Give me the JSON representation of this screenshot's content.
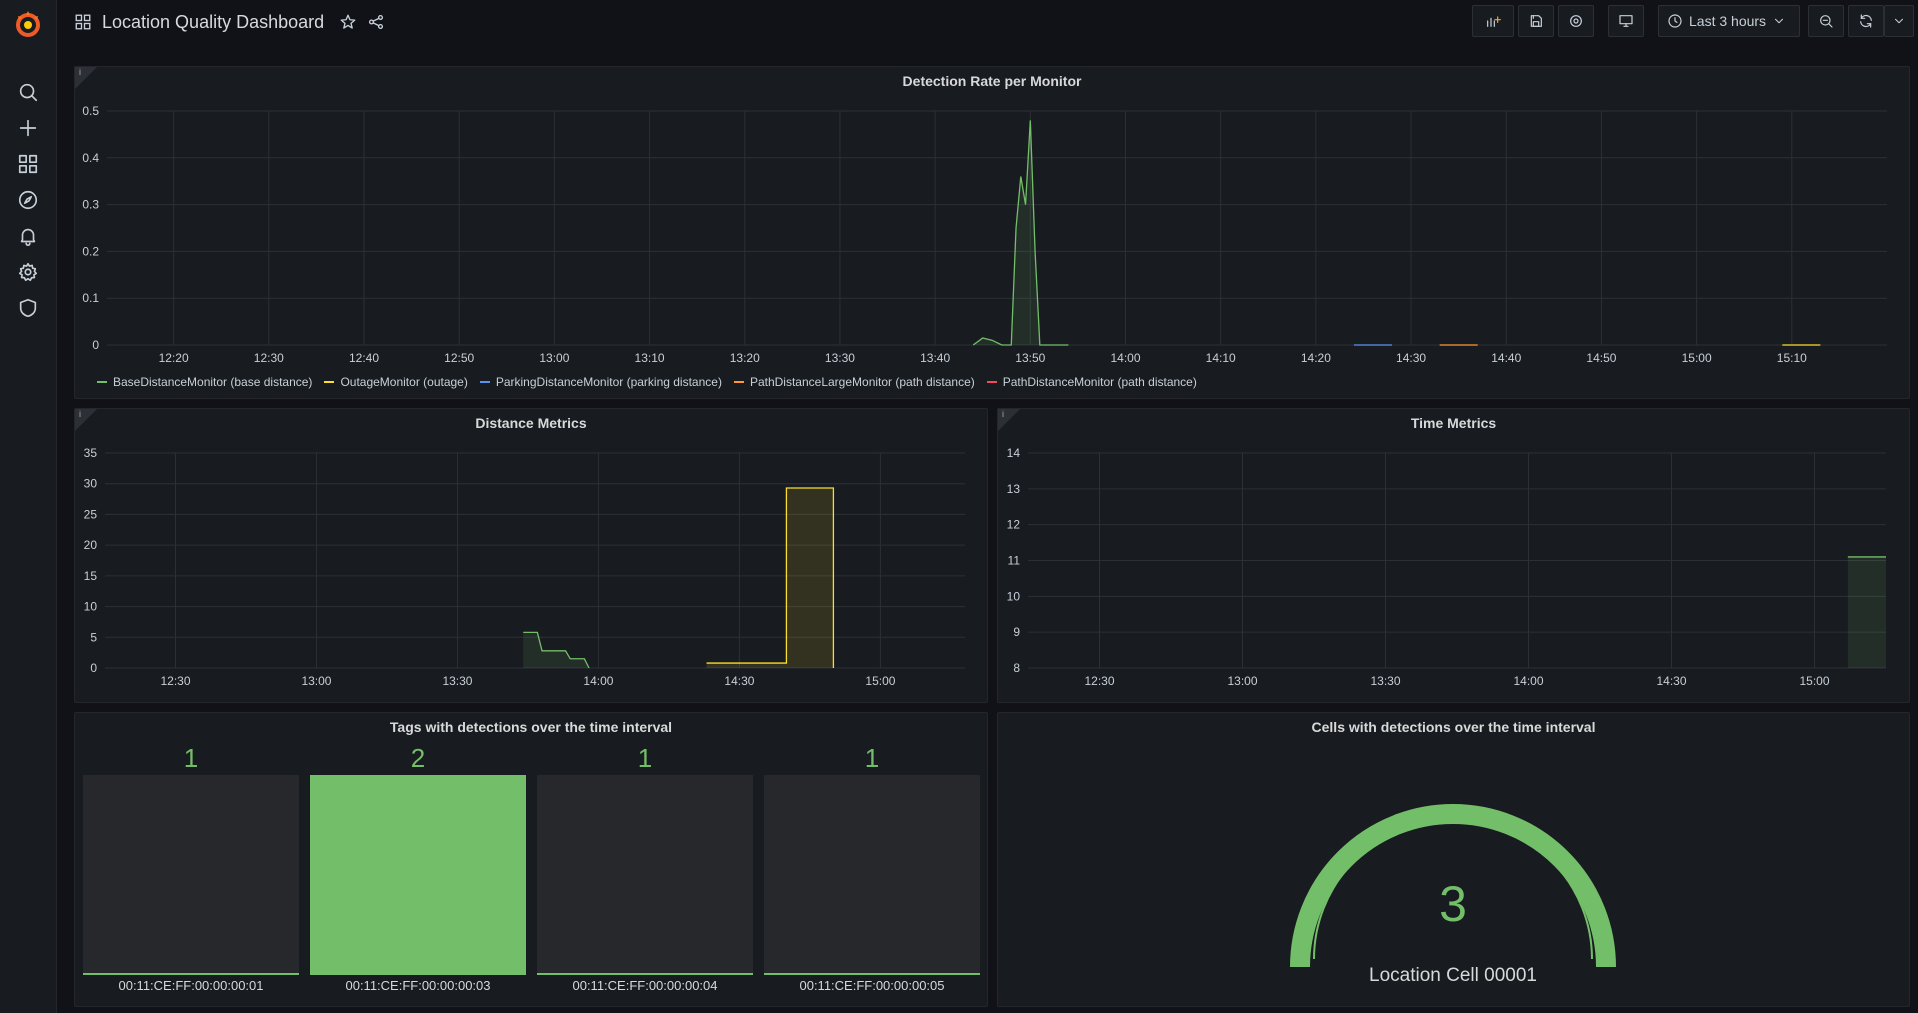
{
  "header": {
    "title": "Location Quality Dashboard",
    "time_range": "Last 3 hours"
  },
  "colors": {
    "green": "#73bf69",
    "yellow": "#fade2a",
    "blue": "#5794f2",
    "orange": "#ff9830",
    "red": "#f2495c",
    "panel_bg": "#181b1f",
    "page_bg": "#111217"
  },
  "sidebar": {
    "icons": [
      "search-icon",
      "plus-icon",
      "dashboards-icon",
      "explore-icon",
      "alerting-icon",
      "gear-icon",
      "shield-icon"
    ]
  },
  "panels": {
    "detection": {
      "title": "Detection Rate per Monitor",
      "legend": [
        {
          "label": "BaseDistanceMonitor (base distance)",
          "color": "#73bf69"
        },
        {
          "label": "OutageMonitor (outage)",
          "color": "#fade2a"
        },
        {
          "label": "ParkingDistanceMonitor (parking distance)",
          "color": "#5794f2"
        },
        {
          "label": "PathDistanceLargeMonitor (path distance)",
          "color": "#ff9830"
        },
        {
          "label": "PathDistanceMonitor (path distance)",
          "color": "#f2495c"
        }
      ]
    },
    "distance": {
      "title": "Distance Metrics"
    },
    "time": {
      "title": "Time Metrics"
    },
    "tags": {
      "title": "Tags with detections over the time interval",
      "items": [
        {
          "value": "1",
          "label": "00:11:CE:FF:00:00:00:01",
          "highlight": false
        },
        {
          "value": "2",
          "label": "00:11:CE:FF:00:00:00:03",
          "highlight": true
        },
        {
          "value": "1",
          "label": "00:11:CE:FF:00:00:00:04",
          "highlight": false
        },
        {
          "value": "1",
          "label": "00:11:CE:FF:00:00:00:05",
          "highlight": false
        }
      ]
    },
    "cells": {
      "title": "Cells with detections over the time interval",
      "value": "3",
      "label": "Location Cell 00001"
    }
  },
  "chart_data": [
    {
      "type": "line",
      "title": "Detection Rate per Monitor",
      "x_ticks": [
        "12:20",
        "12:30",
        "12:40",
        "12:50",
        "13:00",
        "13:10",
        "13:20",
        "13:30",
        "13:40",
        "13:50",
        "14:00",
        "14:10",
        "14:20",
        "14:30",
        "14:40",
        "14:50",
        "15:00",
        "15:10"
      ],
      "y_ticks": [
        "0",
        "0.1",
        "0.2",
        "0.3",
        "0.4",
        "0.5"
      ],
      "ylim": [
        0,
        0.5
      ],
      "grid": true,
      "legend_position": "bottom",
      "series": [
        {
          "name": "BaseDistanceMonitor (base distance)",
          "points": [
            [
              "13:44",
              0
            ],
            [
              "13:45",
              0.015
            ],
            [
              "13:46",
              0.01
            ],
            [
              "13:47",
              0
            ],
            [
              "13:48",
              0
            ],
            [
              "13:48.5",
              0.25
            ],
            [
              "13:49",
              0.36
            ],
            [
              "13:49.5",
              0.3
            ],
            [
              "13:50",
              0.48
            ],
            [
              "13:50.5",
              0.2
            ],
            [
              "13:51",
              0
            ],
            [
              "13:54",
              0
            ]
          ]
        },
        {
          "name": "ParkingDistanceMonitor (parking distance)",
          "points": [
            [
              "14:24",
              0
            ],
            [
              "14:28",
              0
            ]
          ]
        },
        {
          "name": "PathDistanceLargeMonitor (path distance)",
          "points": [
            [
              "14:33",
              0
            ],
            [
              "14:37",
              0
            ]
          ]
        },
        {
          "name": "OutageMonitor (outage)",
          "points": [
            [
              "15:09",
              0
            ],
            [
              "15:13",
              0
            ]
          ]
        }
      ]
    },
    {
      "type": "line",
      "title": "Distance Metrics",
      "x_ticks": [
        "12:30",
        "13:00",
        "13:30",
        "14:00",
        "14:30",
        "15:00"
      ],
      "y_ticks": [
        "0",
        "5",
        "10",
        "15",
        "20",
        "25",
        "30",
        "35"
      ],
      "ylim": [
        0,
        35
      ],
      "grid": true,
      "series": [
        {
          "name": "green",
          "points": [
            [
              "13:44",
              5.8
            ],
            [
              "13:47",
              5.8
            ],
            [
              "13:48",
              2.8
            ],
            [
              "13:53",
              2.8
            ],
            [
              "13:54",
              1.5
            ],
            [
              "13:57",
              1.5
            ],
            [
              "13:58",
              0
            ]
          ]
        },
        {
          "name": "yellow",
          "points": [
            [
              "14:23",
              0.8
            ],
            [
              "14:40",
              0.8
            ],
            [
              "14:40",
              29.3
            ],
            [
              "14:50",
              29.3
            ],
            [
              "14:50",
              0
            ]
          ]
        }
      ]
    },
    {
      "type": "line",
      "title": "Time Metrics",
      "x_ticks": [
        "12:30",
        "13:00",
        "13:30",
        "14:00",
        "14:30",
        "15:00"
      ],
      "y_ticks": [
        "8",
        "9",
        "10",
        "11",
        "12",
        "13",
        "14"
      ],
      "ylim": [
        8,
        14
      ],
      "grid": true,
      "series": [
        {
          "name": "green",
          "points": [
            [
              "15:07",
              11.1
            ],
            [
              "15:15",
              11.1
            ]
          ]
        }
      ]
    }
  ]
}
